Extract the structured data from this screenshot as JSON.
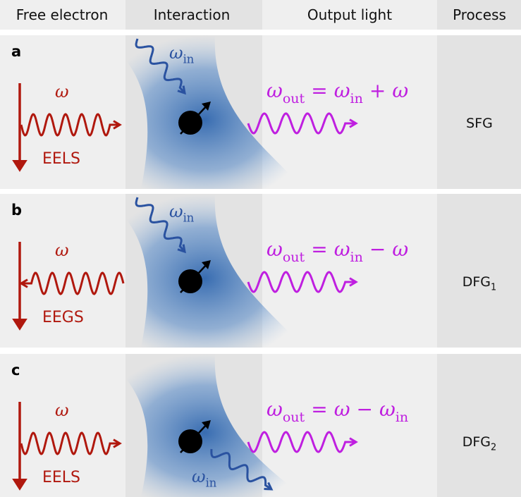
{
  "header": {
    "columns": [
      "Free electron",
      "Interaction",
      "Output light",
      "Process"
    ]
  },
  "rows": [
    {
      "label": "a",
      "electron_signal": "EELS",
      "electron_frequency": [
        {
          "text": "ω"
        }
      ],
      "input_frequency": [
        {
          "text": "ω",
          "sub": "in"
        }
      ],
      "output_frequency": [
        {
          "text": "ω",
          "sub": "out"
        },
        {
          "text": "="
        },
        {
          "text": "ω",
          "sub": "in"
        },
        {
          "text": "+"
        },
        {
          "text": "ω"
        }
      ],
      "process": [
        {
          "text": "SFG"
        }
      ]
    },
    {
      "label": "b",
      "electron_signal": "EEGS",
      "electron_frequency": [
        {
          "text": "ω"
        }
      ],
      "input_frequency": [
        {
          "text": "ω",
          "sub": "in"
        }
      ],
      "output_frequency": [
        {
          "text": "ω",
          "sub": "out"
        },
        {
          "text": "="
        },
        {
          "text": "ω",
          "sub": "in"
        },
        {
          "text": "−"
        },
        {
          "text": "ω"
        }
      ],
      "process": [
        {
          "text": "DFG",
          "sub": "1"
        }
      ]
    },
    {
      "label": "c",
      "electron_signal": "EELS",
      "electron_frequency": [
        {
          "text": "ω"
        }
      ],
      "input_frequency": [
        {
          "text": "ω",
          "sub": "in"
        }
      ],
      "output_frequency": [
        {
          "text": "ω",
          "sub": "out"
        },
        {
          "text": "="
        },
        {
          "text": "ω"
        },
        {
          "text": "−"
        },
        {
          "text": "ω",
          "sub": "in"
        }
      ],
      "process": [
        {
          "text": "DFG",
          "sub": "2"
        }
      ]
    }
  ]
}
